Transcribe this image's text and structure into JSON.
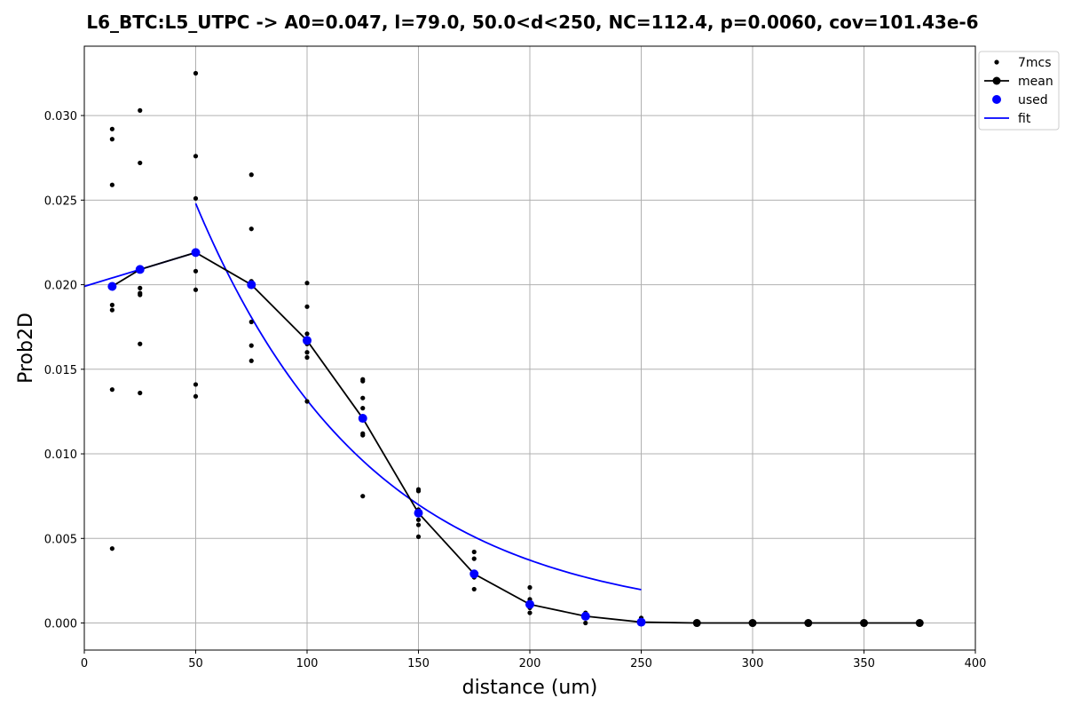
{
  "chart_data": {
    "type": "scatter",
    "title": "L6_BTC:L5_UTPC -> A0=0.047, l=79.0, 50.0<d<250, NC=112.4, p=0.0060, cov=101.43e-6",
    "xlabel": "distance (um)",
    "ylabel": "Prob2D",
    "xlim": [
      0,
      400
    ],
    "ylim": [
      -0.0016,
      0.0341
    ],
    "x_ticks": [
      0,
      50,
      100,
      150,
      200,
      250,
      300,
      350,
      400
    ],
    "x_tick_labels": [
      "0",
      "50",
      "100",
      "150",
      "200",
      "250",
      "300",
      "350",
      "400"
    ],
    "y_ticks": [
      0.0,
      0.005,
      0.01,
      0.015,
      0.02,
      0.025,
      0.03
    ],
    "y_tick_labels": [
      "0.000",
      "0.005",
      "0.010",
      "0.015",
      "0.020",
      "0.025",
      "0.030"
    ],
    "grid": true,
    "legend_position": "upper right, outside plot",
    "series": [
      {
        "name": "7mcs",
        "style": "points",
        "color": "#000000",
        "points": [
          [
            12.5,
            0.0292
          ],
          [
            12.5,
            0.0286
          ],
          [
            12.5,
            0.0259
          ],
          [
            12.5,
            0.0188
          ],
          [
            12.5,
            0.0185
          ],
          [
            12.5,
            0.0138
          ],
          [
            12.5,
            0.0044
          ],
          [
            25,
            0.0303
          ],
          [
            25,
            0.0272
          ],
          [
            25,
            0.0198
          ],
          [
            25,
            0.0195
          ],
          [
            25,
            0.0194
          ],
          [
            25,
            0.0165
          ],
          [
            25,
            0.0136
          ],
          [
            50,
            0.0325
          ],
          [
            50,
            0.0276
          ],
          [
            50,
            0.0251
          ],
          [
            50,
            0.0208
          ],
          [
            50,
            0.0197
          ],
          [
            50,
            0.0141
          ],
          [
            50,
            0.0134
          ],
          [
            75,
            0.0265
          ],
          [
            75,
            0.0233
          ],
          [
            75,
            0.0202
          ],
          [
            75,
            0.0178
          ],
          [
            75,
            0.0164
          ],
          [
            75,
            0.0155
          ],
          [
            100,
            0.0201
          ],
          [
            100,
            0.0187
          ],
          [
            100,
            0.0171
          ],
          [
            100,
            0.0165
          ],
          [
            100,
            0.016
          ],
          [
            100,
            0.0157
          ],
          [
            100,
            0.0131
          ],
          [
            125,
            0.0144
          ],
          [
            125,
            0.0143
          ],
          [
            125,
            0.0133
          ],
          [
            125,
            0.0127
          ],
          [
            125,
            0.0112
          ],
          [
            125,
            0.0111
          ],
          [
            125,
            0.0075
          ],
          [
            150,
            0.0079
          ],
          [
            150,
            0.0078
          ],
          [
            150,
            0.0067
          ],
          [
            150,
            0.0061
          ],
          [
            150,
            0.0058
          ],
          [
            150,
            0.0051
          ],
          [
            175,
            0.0042
          ],
          [
            175,
            0.0038
          ],
          [
            175,
            0.0029
          ],
          [
            175,
            0.0027
          ],
          [
            175,
            0.002
          ],
          [
            200,
            0.0021
          ],
          [
            200,
            0.0014
          ],
          [
            200,
            0.0011
          ],
          [
            200,
            0.0009
          ],
          [
            200,
            0.0006
          ],
          [
            225,
            0.0006
          ],
          [
            225,
            0.0005
          ],
          [
            225,
            0.0004
          ],
          [
            225,
            0.0
          ],
          [
            250,
            0.0003
          ],
          [
            250,
            0.0001
          ],
          [
            250,
            0.0
          ]
        ]
      },
      {
        "name": "mean",
        "style": "line+markers",
        "color": "#000000",
        "x": [
          12.5,
          25,
          50,
          75,
          100,
          125,
          150,
          175,
          200,
          225,
          250,
          275,
          300,
          325,
          350,
          375
        ],
        "y": [
          0.0199,
          0.0209,
          0.0219,
          0.02,
          0.0167,
          0.0121,
          0.0065,
          0.0029,
          0.0011,
          0.0004,
          5e-05,
          0.0,
          0.0,
          0.0,
          0.0,
          0.0
        ]
      },
      {
        "name": "used",
        "style": "markers",
        "color": "#0000ff",
        "x": [
          12.5,
          25,
          50,
          75,
          100,
          125,
          150,
          175,
          200,
          225,
          250
        ],
        "y": [
          0.0199,
          0.0209,
          0.0219,
          0.02,
          0.0167,
          0.0121,
          0.0065,
          0.0029,
          0.0011,
          0.0004,
          5e-05
        ]
      },
      {
        "name": "fit",
        "style": "line",
        "color": "#0000ff",
        "segments": [
          {
            "x": [
              0,
              50
            ],
            "y": [
              0.0199,
              0.0219
            ]
          },
          {
            "function": "A0*exp(-(d-d0)/l)",
            "A0": 0.0248,
            "d0": 50,
            "l": 79.0,
            "x_range": [
              50,
              250
            ]
          }
        ]
      }
    ]
  }
}
